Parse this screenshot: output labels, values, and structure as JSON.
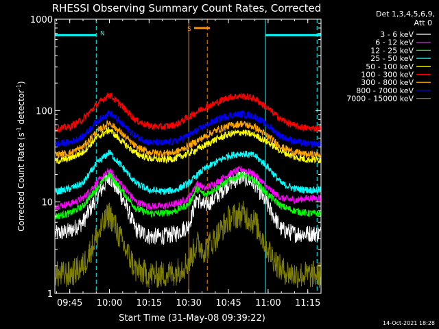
{
  "chart_data": {
    "type": "line",
    "title": "RHESSI Observing Summary Count Rates, Corrected",
    "xlabel": "Start Time (31-May-08 09:39:22)",
    "ylabel_main": "Corrected Count Rate (s",
    "ylabel_sup1": "-1",
    "ylabel_mid": " detector",
    "ylabel_sup2": "-1",
    "ylabel_end": ")",
    "yscale": "log",
    "ylim": [
      1,
      1000
    ],
    "xlim_minutes": [
      579.37,
      680
    ],
    "x_ticks": [
      {
        "min": 585,
        "label": "09:45"
      },
      {
        "min": 600,
        "label": "10:00"
      },
      {
        "min": 615,
        "label": "10:15"
      },
      {
        "min": 630,
        "label": "10:30"
      },
      {
        "min": 645,
        "label": "10:45"
      },
      {
        "min": 660,
        "label": "11:00"
      },
      {
        "min": 675,
        "label": "11:15"
      }
    ],
    "y_ticks": [
      {
        "value": 1,
        "label": "1"
      },
      {
        "value": 10,
        "label": "10"
      },
      {
        "value": 100,
        "label": "100"
      },
      {
        "value": 1000,
        "label": "1000"
      }
    ],
    "legend_header": [
      "Det 1,3,4,5,6,9,",
      "Att 0"
    ],
    "legend_position": "top-right",
    "timestamp": "14-Oct-2021 18:28",
    "series": [
      {
        "name": "3 - 6 keV",
        "color": "#ffffff",
        "x": [
          580,
          585,
          590,
          595,
          600,
          605,
          610,
          615,
          620,
          625,
          630,
          633,
          636,
          640,
          645,
          650,
          655,
          660,
          665,
          670,
          675,
          679
        ],
        "values": [
          4.5,
          4.8,
          6,
          11,
          19,
          11,
          5,
          4.2,
          4.2,
          4.5,
          5.5,
          11,
          9,
          11,
          16,
          19,
          16,
          9,
          5,
          4.5,
          4.5,
          4.5
        ]
      },
      {
        "name": "6 - 12 keV",
        "color": "#ff00ff",
        "x": [
          580,
          585,
          590,
          595,
          600,
          605,
          610,
          615,
          620,
          625,
          630,
          633,
          636,
          640,
          645,
          650,
          655,
          660,
          665,
          670,
          675,
          679
        ],
        "values": [
          9,
          9.5,
          11,
          16,
          22,
          15,
          10,
          9,
          9,
          9.5,
          11,
          16,
          14,
          16,
          20,
          23,
          20,
          14,
          11,
          10.5,
          11,
          11
        ]
      },
      {
        "name": "12 - 25 keV",
        "color": "#00ff00",
        "x": [
          580,
          585,
          590,
          595,
          600,
          605,
          610,
          615,
          620,
          625,
          630,
          633,
          636,
          640,
          645,
          650,
          655,
          660,
          665,
          670,
          675,
          679
        ],
        "values": [
          7,
          7.5,
          9,
          14,
          20,
          13,
          8.5,
          7.5,
          7.5,
          8,
          9.5,
          14,
          12,
          14,
          17,
          20,
          17,
          12,
          9,
          8,
          7.5,
          7.5
        ]
      },
      {
        "name": "25 - 50 keV",
        "color": "#00ffff",
        "x": [
          580,
          585,
          590,
          595,
          600,
          605,
          610,
          615,
          620,
          625,
          630,
          635,
          640,
          645,
          650,
          655,
          660,
          665,
          670,
          675,
          679
        ],
        "values": [
          13,
          14,
          16,
          26,
          35,
          24,
          16,
          13.5,
          13,
          13.5,
          16,
          22,
          27,
          32,
          34,
          32,
          24,
          16,
          14,
          13.5,
          13.5
        ]
      },
      {
        "name": "50 - 100 keV",
        "color": "#ffff00",
        "x": [
          580,
          585,
          590,
          595,
          600,
          605,
          610,
          615,
          620,
          625,
          630,
          635,
          640,
          645,
          650,
          655,
          660,
          665,
          670,
          675,
          679
        ],
        "values": [
          28,
          30,
          35,
          50,
          62,
          45,
          34,
          30,
          29,
          30,
          34,
          40,
          48,
          55,
          58,
          54,
          45,
          36,
          31,
          29,
          29
        ]
      },
      {
        "name": "100 - 300 keV",
        "color": "#ff0000",
        "x": [
          580,
          585,
          590,
          595,
          600,
          605,
          610,
          615,
          620,
          625,
          630,
          635,
          640,
          645,
          650,
          655,
          660,
          665,
          670,
          675,
          679
        ],
        "values": [
          64,
          66,
          80,
          115,
          150,
          110,
          78,
          68,
          66,
          70,
          85,
          105,
          120,
          140,
          145,
          135,
          105,
          80,
          68,
          64,
          64
        ]
      },
      {
        "name": "300 - 800 keV",
        "color": "#ffa500",
        "x": [
          580,
          585,
          590,
          595,
          600,
          605,
          610,
          615,
          620,
          625,
          630,
          635,
          640,
          645,
          650,
          655,
          660,
          665,
          670,
          675,
          679
        ],
        "values": [
          33,
          34,
          40,
          58,
          74,
          55,
          40,
          35,
          34,
          35,
          41,
          50,
          60,
          68,
          72,
          66,
          52,
          40,
          35,
          33,
          33
        ]
      },
      {
        "name": "800 - 7000 keV",
        "color": "#0000ff",
        "x": [
          580,
          585,
          590,
          595,
          600,
          605,
          610,
          615,
          620,
          625,
          630,
          635,
          640,
          645,
          650,
          655,
          660,
          665,
          670,
          675,
          679
        ],
        "values": [
          43,
          45,
          52,
          75,
          95,
          70,
          52,
          45,
          44,
          46,
          54,
          65,
          78,
          88,
          92,
          86,
          68,
          52,
          46,
          43,
          43
        ]
      },
      {
        "name": "7000 - 15000 keV",
        "color": "#808000",
        "x": [
          580,
          585,
          590,
          595,
          600,
          605,
          610,
          615,
          620,
          625,
          630,
          633,
          636,
          640,
          645,
          650,
          655,
          660,
          665,
          670,
          675,
          679
        ],
        "values": [
          1.6,
          1.6,
          2,
          4,
          7.5,
          3.5,
          1.8,
          1.6,
          1.6,
          1.7,
          2.2,
          3.5,
          3,
          4,
          6.5,
          7.5,
          6,
          3,
          1.8,
          1.6,
          1.6,
          1.6
        ]
      }
    ],
    "legend_order": [
      "3 - 6 keV",
      "6 - 12 keV",
      "12 - 25 keV",
      "25 - 50 keV",
      "50 - 100 keV",
      "100 - 300 keV",
      "300 - 800 keV",
      "800 - 7000 keV",
      "7000 - 15000 keV"
    ],
    "annotations": {
      "night_bars": [
        {
          "x_start": 579.37,
          "x_end": 595,
          "y": 670,
          "label": "",
          "color": "#00ffff"
        },
        {
          "x_start": 659,
          "x_end": 680,
          "y": 670,
          "label": "",
          "color": "#00ffff"
        }
      ],
      "saa_bar": {
        "x_start": 632,
        "x_end": 638,
        "y": 800,
        "label": "S",
        "color": "#ff8c00"
      },
      "n_label": {
        "x": 596.5,
        "y": 700,
        "label": "N",
        "color": "#00ffff"
      },
      "vlines": [
        {
          "x": 595,
          "color": "#00ffff",
          "style": "dashed"
        },
        {
          "x": 659,
          "color": "#00ffff",
          "style": "solid"
        },
        {
          "x": 678.5,
          "color": "#00ffff",
          "style": "dashed"
        },
        {
          "x": 630,
          "color": "#ff8c00",
          "style": "solid"
        },
        {
          "x": 637,
          "color": "#ff8c00",
          "style": "dashed"
        }
      ]
    }
  }
}
